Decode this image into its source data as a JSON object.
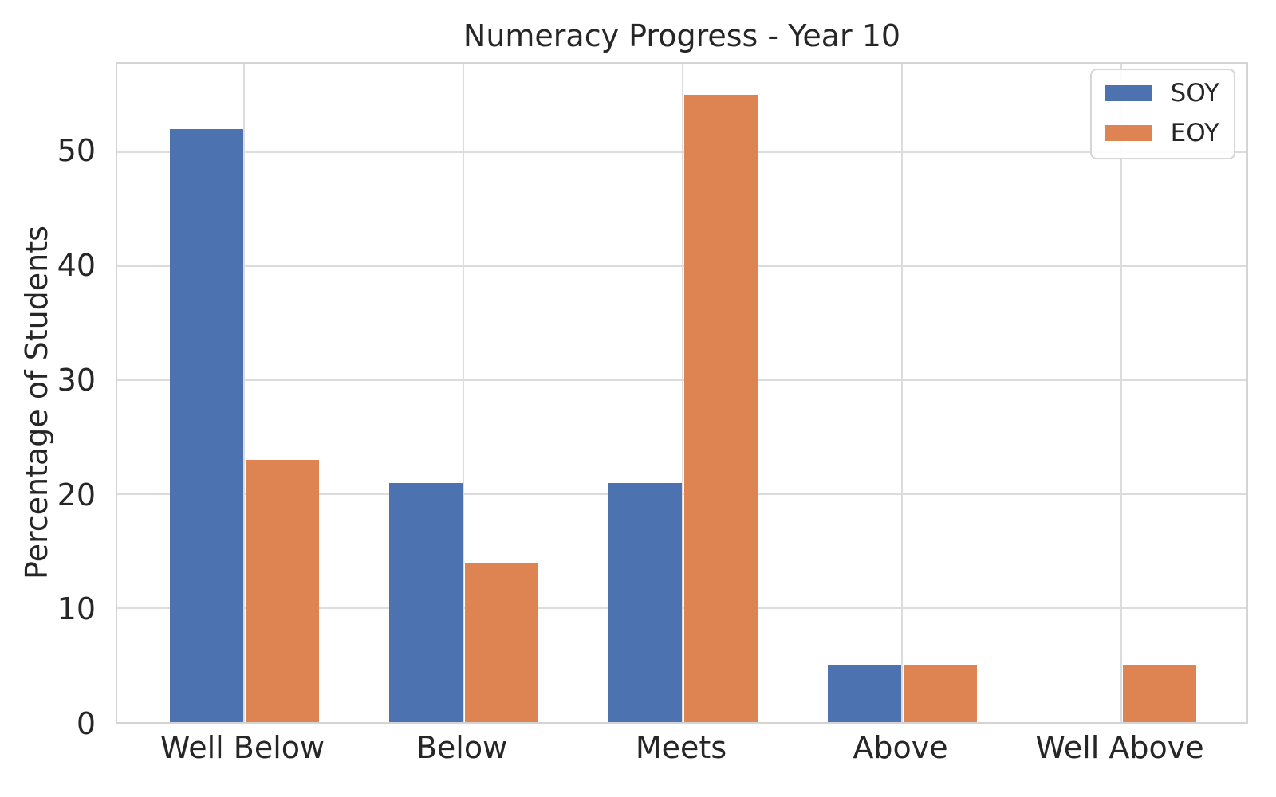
{
  "chart_data": {
    "type": "bar",
    "title": "Numeracy Progress - Year 10",
    "xlabel": "",
    "ylabel": "Percentage of Students",
    "categories": [
      "Well Below",
      "Below",
      "Meets",
      "Above",
      "Well Above"
    ],
    "series": [
      {
        "name": "SOY",
        "color": "#4C72B0",
        "values": [
          52,
          21,
          21,
          5,
          0
        ]
      },
      {
        "name": "EOY",
        "color": "#DD8452",
        "values": [
          23,
          14,
          55,
          5,
          5
        ]
      }
    ],
    "yticks": [
      0,
      10,
      20,
      30,
      40,
      50
    ],
    "ylim": [
      0,
      57.75
    ],
    "grid": true,
    "grid_color": "#dcdcdc",
    "axes_edge_color": "#d4d4d4",
    "text_color": "#262626",
    "background_color": "#ffffff",
    "legend_position": "upper right"
  }
}
